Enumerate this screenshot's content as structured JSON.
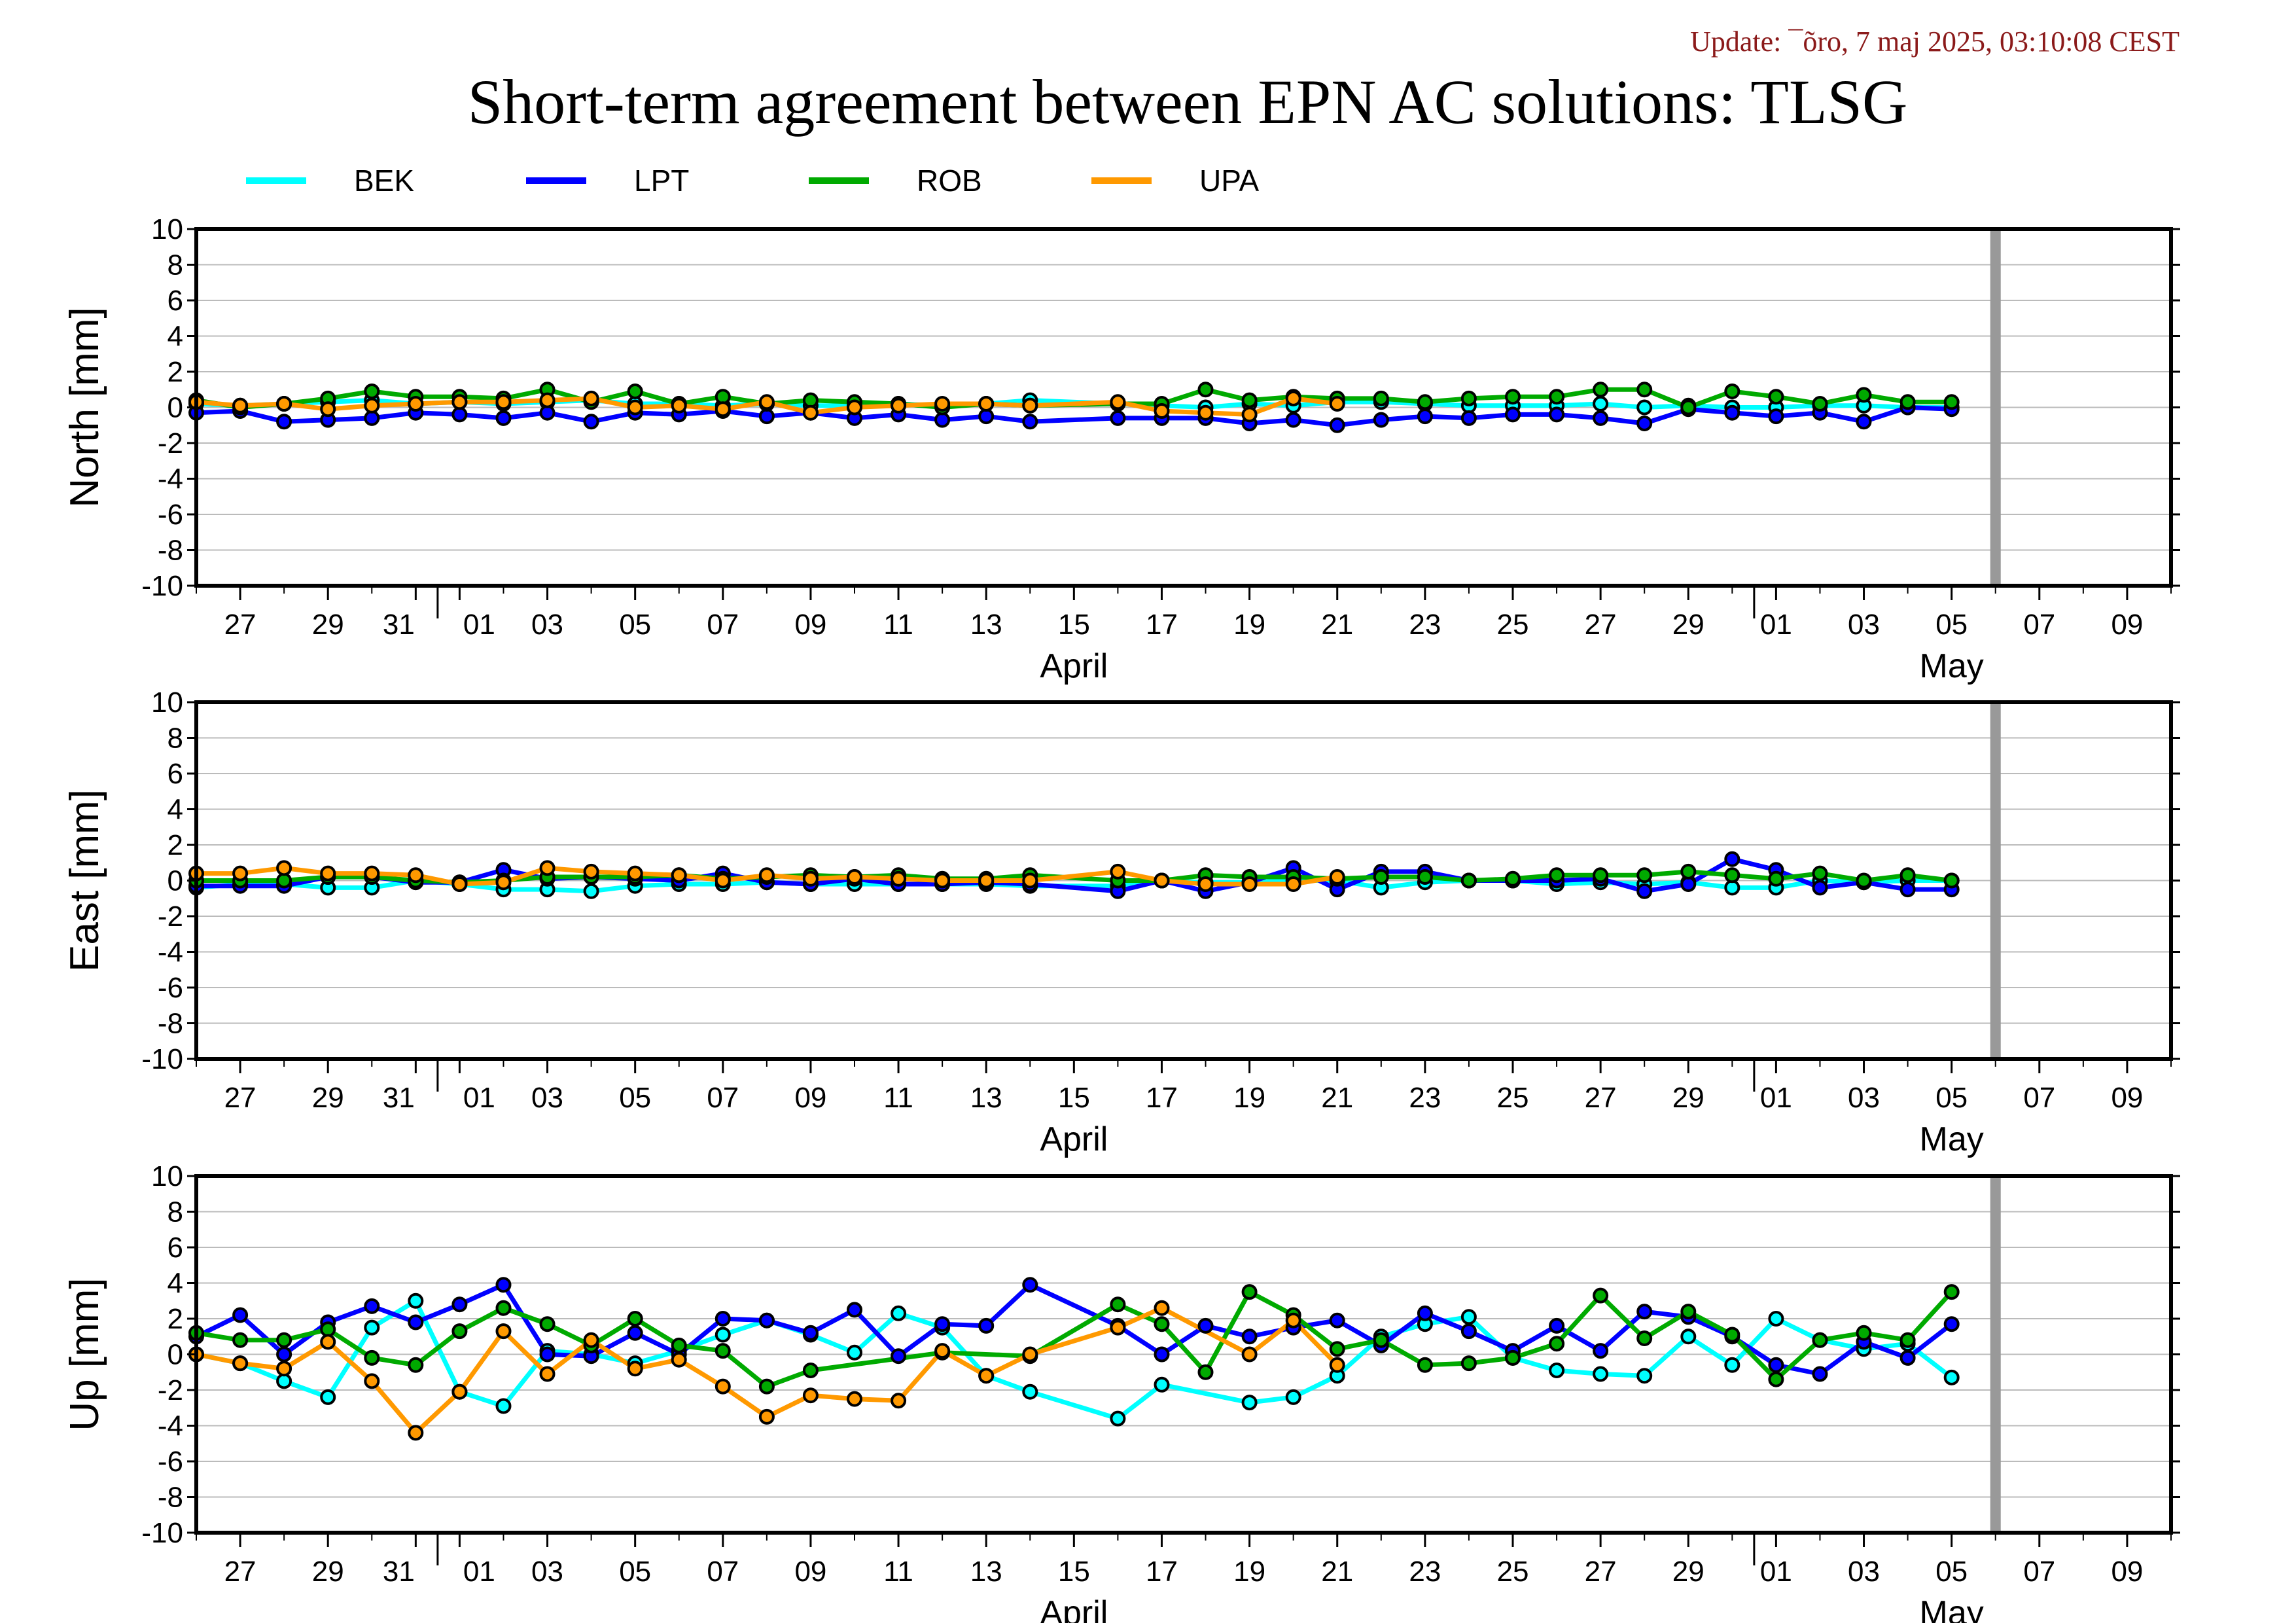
{
  "update_text": "Update: ¯õro, 7 maj 2025, 03:10:08 CEST",
  "title": "Short-term agreement between EPN AC solutions: TLSG",
  "colors": {
    "BEK": "#00ffff",
    "LPT": "#0000ff",
    "ROB": "#00aa00",
    "UPA": "#ff9900",
    "today_bar": "#999999",
    "grid": "#bbbbbb"
  },
  "chart_data": [
    {
      "type": "line",
      "ylabel": "North [mm]",
      "ylim": [
        -10,
        10
      ],
      "yticks": [
        10,
        8,
        6,
        4,
        2,
        0,
        -2,
        -4,
        -6,
        -8,
        -10
      ],
      "xlim": [
        "2025-03-26",
        "2025-05-10"
      ],
      "xtick_labels": [
        {
          "date": "2025-03-27",
          "label": "27"
        },
        {
          "date": "2025-03-29",
          "label": "29"
        },
        {
          "date": "2025-03-31",
          "label": "31"
        },
        {
          "date": "2025-04-01",
          "label": "01"
        },
        {
          "date": "2025-04-03",
          "label": "03"
        },
        {
          "date": "2025-04-05",
          "label": "05"
        },
        {
          "date": "2025-04-07",
          "label": "07"
        },
        {
          "date": "2025-04-09",
          "label": "09"
        },
        {
          "date": "2025-04-11",
          "label": "11"
        },
        {
          "date": "2025-04-13",
          "label": "13"
        },
        {
          "date": "2025-04-15",
          "label": "15"
        },
        {
          "date": "2025-04-17",
          "label": "17"
        },
        {
          "date": "2025-04-19",
          "label": "19"
        },
        {
          "date": "2025-04-21",
          "label": "21"
        },
        {
          "date": "2025-04-23",
          "label": "23"
        },
        {
          "date": "2025-04-25",
          "label": "25"
        },
        {
          "date": "2025-04-27",
          "label": "27"
        },
        {
          "date": "2025-04-29",
          "label": "29"
        },
        {
          "date": "2025-05-01",
          "label": "01"
        },
        {
          "date": "2025-05-03",
          "label": "03"
        },
        {
          "date": "2025-05-05",
          "label": "05"
        },
        {
          "date": "2025-05-07",
          "label": "07"
        },
        {
          "date": "2025-05-09",
          "label": "09"
        }
      ],
      "month_labels": [
        {
          "date": "2025-04-15",
          "label": "April"
        },
        {
          "date": "2025-05-05",
          "label": "May"
        }
      ],
      "today_marker": "2025-05-06",
      "x": [
        "2025-03-26",
        "2025-03-27",
        "2025-03-28",
        "2025-03-29",
        "2025-03-30",
        "2025-03-31",
        "2025-04-01",
        "2025-04-02",
        "2025-04-03",
        "2025-04-04",
        "2025-04-05",
        "2025-04-06",
        "2025-04-07",
        "2025-04-08",
        "2025-04-09",
        "2025-04-10",
        "2025-04-11",
        "2025-04-12",
        "2025-04-13",
        "2025-04-14",
        "2025-04-16",
        "2025-04-17",
        "2025-04-18",
        "2025-04-19",
        "2025-04-20",
        "2025-04-21",
        "2025-04-22",
        "2025-04-23",
        "2025-04-24",
        "2025-04-25",
        "2025-04-26",
        "2025-04-27",
        "2025-04-28",
        "2025-04-29",
        "2025-04-30",
        "2025-05-01",
        "2025-05-02",
        "2025-05-03",
        "2025-05-04",
        "2025-05-05"
      ],
      "series": [
        {
          "name": "BEK",
          "values": [
            0.2,
            0.1,
            0.2,
            0.3,
            0.4,
            0.2,
            0.3,
            0.2,
            0.3,
            0.4,
            0.2,
            0.2,
            0.1,
            0.2,
            0.1,
            0.1,
            0.2,
            0.1,
            0.2,
            0.4,
            0.2,
            0.1,
            0.0,
            0.2,
            0.1,
            0.3,
            0.3,
            0.2,
            0.1,
            0.1,
            0.1,
            0.2,
            0.0,
            0.1,
            0.0,
            0.0,
            0.1,
            0.1,
            0.0,
            0.0
          ]
        },
        {
          "name": "LPT",
          "values": [
            -0.3,
            -0.2,
            -0.8,
            -0.7,
            -0.6,
            -0.3,
            -0.4,
            -0.6,
            -0.3,
            -0.8,
            -0.3,
            -0.4,
            -0.2,
            -0.5,
            -0.3,
            -0.6,
            -0.4,
            -0.7,
            -0.5,
            -0.8,
            -0.6,
            -0.6,
            -0.6,
            -0.9,
            -0.7,
            -1.0,
            -0.7,
            -0.5,
            -0.6,
            -0.4,
            -0.4,
            -0.6,
            -0.9,
            -0.1,
            -0.3,
            -0.5,
            -0.3,
            -0.8,
            0.0,
            -0.1
          ]
        },
        {
          "name": "ROB",
          "values": [
            0.4,
            0.0,
            0.2,
            0.5,
            0.9,
            0.6,
            0.6,
            0.5,
            1.0,
            0.3,
            0.9,
            0.2,
            0.6,
            0.2,
            0.4,
            0.3,
            0.2,
            0.0,
            0.2,
            0.1,
            0.2,
            0.2,
            1.0,
            0.4,
            0.6,
            0.5,
            0.5,
            0.3,
            0.5,
            0.6,
            0.6,
            1.0,
            1.0,
            0.0,
            0.9,
            0.6,
            0.2,
            0.7,
            0.3,
            0.3
          ]
        },
        {
          "name": "UPA",
          "values": [
            0.3,
            0.1,
            0.2,
            -0.1,
            0.1,
            0.2,
            0.3,
            0.3,
            0.4,
            0.5,
            0.0,
            0.1,
            -0.1,
            0.3,
            -0.3,
            0.0,
            0.1,
            0.2,
            0.2,
            0.1,
            0.3,
            -0.2,
            -0.3,
            -0.4,
            0.5,
            0.2,
            null,
            null,
            null,
            null,
            null,
            null,
            null,
            null,
            null,
            null,
            null,
            null,
            null,
            null
          ]
        }
      ]
    },
    {
      "type": "line",
      "ylabel": "East [mm]",
      "ylim": [
        -10,
        10
      ],
      "yticks": [
        10,
        8,
        6,
        4,
        2,
        0,
        -2,
        -4,
        -6,
        -8,
        -10
      ],
      "xlim": [
        "2025-03-26",
        "2025-05-10"
      ],
      "xtick_labels": [
        {
          "date": "2025-03-27",
          "label": "27"
        },
        {
          "date": "2025-03-29",
          "label": "29"
        },
        {
          "date": "2025-03-31",
          "label": "31"
        },
        {
          "date": "2025-04-01",
          "label": "01"
        },
        {
          "date": "2025-04-03",
          "label": "03"
        },
        {
          "date": "2025-04-05",
          "label": "05"
        },
        {
          "date": "2025-04-07",
          "label": "07"
        },
        {
          "date": "2025-04-09",
          "label": "09"
        },
        {
          "date": "2025-04-11",
          "label": "11"
        },
        {
          "date": "2025-04-13",
          "label": "13"
        },
        {
          "date": "2025-04-15",
          "label": "15"
        },
        {
          "date": "2025-04-17",
          "label": "17"
        },
        {
          "date": "2025-04-19",
          "label": "19"
        },
        {
          "date": "2025-04-21",
          "label": "21"
        },
        {
          "date": "2025-04-23",
          "label": "23"
        },
        {
          "date": "2025-04-25",
          "label": "25"
        },
        {
          "date": "2025-04-27",
          "label": "27"
        },
        {
          "date": "2025-04-29",
          "label": "29"
        },
        {
          "date": "2025-05-01",
          "label": "01"
        },
        {
          "date": "2025-05-03",
          "label": "03"
        },
        {
          "date": "2025-05-05",
          "label": "05"
        },
        {
          "date": "2025-05-07",
          "label": "07"
        },
        {
          "date": "2025-05-09",
          "label": "09"
        }
      ],
      "month_labels": [
        {
          "date": "2025-04-15",
          "label": "April"
        },
        {
          "date": "2025-05-05",
          "label": "May"
        }
      ],
      "today_marker": "2025-05-06",
      "x": [
        "2025-03-26",
        "2025-03-27",
        "2025-03-28",
        "2025-03-29",
        "2025-03-30",
        "2025-03-31",
        "2025-04-01",
        "2025-04-02",
        "2025-04-03",
        "2025-04-04",
        "2025-04-05",
        "2025-04-06",
        "2025-04-07",
        "2025-04-08",
        "2025-04-09",
        "2025-04-10",
        "2025-04-11",
        "2025-04-12",
        "2025-04-13",
        "2025-04-14",
        "2025-04-16",
        "2025-04-17",
        "2025-04-18",
        "2025-04-19",
        "2025-04-20",
        "2025-04-21",
        "2025-04-22",
        "2025-04-23",
        "2025-04-24",
        "2025-04-25",
        "2025-04-26",
        "2025-04-27",
        "2025-04-28",
        "2025-04-29",
        "2025-04-30",
        "2025-05-01",
        "2025-05-02",
        "2025-05-03",
        "2025-05-04",
        "2025-05-05"
      ],
      "series": [
        {
          "name": "BEK",
          "values": [
            -0.4,
            -0.2,
            -0.2,
            -0.4,
            -0.4,
            0.0,
            -0.2,
            -0.5,
            -0.5,
            -0.6,
            -0.3,
            -0.2,
            -0.2,
            -0.1,
            -0.2,
            -0.2,
            -0.2,
            -0.2,
            -0.2,
            -0.3,
            -0.3,
            0.0,
            -0.1,
            -0.1,
            0.0,
            0.0,
            -0.4,
            -0.1,
            0.0,
            0.0,
            -0.2,
            -0.1,
            -0.2,
            -0.1,
            -0.4,
            -0.4,
            0.0,
            -0.1,
            0.0,
            0.0
          ]
        },
        {
          "name": "LPT",
          "values": [
            -0.3,
            -0.3,
            -0.3,
            0.2,
            0.2,
            -0.1,
            -0.1,
            0.6,
            0.1,
            0.2,
            0.1,
            0.0,
            0.4,
            -0.1,
            -0.2,
            0.1,
            -0.2,
            -0.2,
            -0.1,
            -0.2,
            -0.6,
            0.0,
            -0.6,
            -0.1,
            0.7,
            -0.5,
            0.5,
            0.5,
            0.0,
            0.0,
            0.0,
            0.1,
            -0.6,
            -0.2,
            1.2,
            0.6,
            -0.4,
            -0.1,
            -0.5,
            -0.5
          ]
        },
        {
          "name": "ROB",
          "values": [
            0.0,
            0.0,
            0.0,
            0.2,
            0.2,
            0.0,
            -0.1,
            0.0,
            0.2,
            0.2,
            0.2,
            0.3,
            0.1,
            0.2,
            0.3,
            0.2,
            0.3,
            0.1,
            0.1,
            0.3,
            0.0,
            0.0,
            0.3,
            0.2,
            0.2,
            0.1,
            0.2,
            0.2,
            0.0,
            0.1,
            0.3,
            0.3,
            0.3,
            0.5,
            0.3,
            0.1,
            0.4,
            0.0,
            0.3,
            0.0
          ]
        },
        {
          "name": "UPA",
          "values": [
            0.4,
            0.4,
            0.7,
            0.4,
            0.4,
            0.3,
            -0.2,
            -0.1,
            0.7,
            0.5,
            0.4,
            0.3,
            0.0,
            0.3,
            0.1,
            0.2,
            0.1,
            0.0,
            0.0,
            0.0,
            0.5,
            0.0,
            -0.2,
            -0.2,
            -0.2,
            0.2,
            null,
            null,
            null,
            null,
            null,
            null,
            null,
            null,
            null,
            null,
            null,
            null,
            null,
            null
          ]
        }
      ]
    },
    {
      "type": "line",
      "ylabel": "Up [mm]",
      "ylim": [
        -10,
        10
      ],
      "yticks": [
        10,
        8,
        6,
        4,
        2,
        0,
        -2,
        -4,
        -6,
        -8,
        -10
      ],
      "xlim": [
        "2025-03-26",
        "2025-05-10"
      ],
      "xtick_labels": [
        {
          "date": "2025-03-27",
          "label": "27"
        },
        {
          "date": "2025-03-29",
          "label": "29"
        },
        {
          "date": "2025-03-31",
          "label": "31"
        },
        {
          "date": "2025-04-01",
          "label": "01"
        },
        {
          "date": "2025-04-03",
          "label": "03"
        },
        {
          "date": "2025-04-05",
          "label": "05"
        },
        {
          "date": "2025-04-07",
          "label": "07"
        },
        {
          "date": "2025-04-09",
          "label": "09"
        },
        {
          "date": "2025-04-11",
          "label": "11"
        },
        {
          "date": "2025-04-13",
          "label": "13"
        },
        {
          "date": "2025-04-15",
          "label": "15"
        },
        {
          "date": "2025-04-17",
          "label": "17"
        },
        {
          "date": "2025-04-19",
          "label": "19"
        },
        {
          "date": "2025-04-21",
          "label": "21"
        },
        {
          "date": "2025-04-23",
          "label": "23"
        },
        {
          "date": "2025-04-25",
          "label": "25"
        },
        {
          "date": "2025-04-27",
          "label": "27"
        },
        {
          "date": "2025-04-29",
          "label": "29"
        },
        {
          "date": "2025-05-01",
          "label": "01"
        },
        {
          "date": "2025-05-03",
          "label": "03"
        },
        {
          "date": "2025-05-05",
          "label": "05"
        },
        {
          "date": "2025-05-07",
          "label": "07"
        },
        {
          "date": "2025-05-09",
          "label": "09"
        }
      ],
      "month_labels": [
        {
          "date": "2025-04-15",
          "label": "April"
        },
        {
          "date": "2025-05-05",
          "label": "May"
        }
      ],
      "today_marker": "2025-05-06",
      "x": [
        "2025-03-26",
        "2025-03-27",
        "2025-03-28",
        "2025-03-29",
        "2025-03-30",
        "2025-03-31",
        "2025-04-01",
        "2025-04-02",
        "2025-04-03",
        "2025-04-04",
        "2025-04-05",
        "2025-04-06",
        "2025-04-07",
        "2025-04-08",
        "2025-04-09",
        "2025-04-10",
        "2025-04-11",
        "2025-04-12",
        "2025-04-13",
        "2025-04-14",
        "2025-04-16",
        "2025-04-17",
        "2025-04-18",
        "2025-04-19",
        "2025-04-20",
        "2025-04-21",
        "2025-04-22",
        "2025-04-23",
        "2025-04-24",
        "2025-04-25",
        "2025-04-26",
        "2025-04-27",
        "2025-04-28",
        "2025-04-29",
        "2025-04-30",
        "2025-05-01",
        "2025-05-02",
        "2025-05-03",
        "2025-05-04",
        "2025-05-05"
      ],
      "series": [
        {
          "name": "BEK",
          "values": [
            0.0,
            -0.5,
            -1.5,
            -2.4,
            1.5,
            3.0,
            -2.1,
            -2.9,
            0.2,
            0.0,
            -0.5,
            0.2,
            1.1,
            1.9,
            1.1,
            0.1,
            2.3,
            1.5,
            -1.2,
            -2.1,
            -3.6,
            -1.7,
            null,
            -2.7,
            -2.4,
            -1.2,
            1.0,
            1.7,
            2.1,
            -0.2,
            -0.9,
            -1.1,
            -1.2,
            1.0,
            -0.6,
            2.0,
            0.8,
            0.3,
            0.6,
            -1.3
          ]
        },
        {
          "name": "LPT",
          "values": [
            1.0,
            2.2,
            0.0,
            1.8,
            2.7,
            1.8,
            2.8,
            3.9,
            0.0,
            -0.1,
            1.2,
            0.0,
            2.0,
            1.9,
            1.2,
            2.5,
            -0.1,
            1.7,
            1.6,
            3.9,
            1.6,
            0.0,
            1.6,
            1.0,
            1.5,
            1.9,
            0.5,
            2.3,
            1.3,
            0.2,
            1.6,
            0.2,
            2.4,
            2.1,
            1.0,
            -0.6,
            -1.1,
            0.7,
            -0.2,
            1.7
          ]
        },
        {
          "name": "ROB",
          "values": [
            1.2,
            0.8,
            0.8,
            1.4,
            -0.2,
            -0.6,
            1.3,
            2.6,
            1.7,
            0.5,
            2.0,
            0.5,
            0.2,
            -1.8,
            -0.9,
            null,
            null,
            0.1,
            null,
            -0.1,
            2.8,
            1.7,
            -1.0,
            3.5,
            2.2,
            0.3,
            0.8,
            -0.6,
            -0.5,
            -0.2,
            0.6,
            3.3,
            0.9,
            2.4,
            1.1,
            -1.4,
            0.8,
            1.2,
            0.8,
            3.5
          ]
        },
        {
          "name": "UPA",
          "values": [
            0.0,
            -0.5,
            -0.8,
            0.7,
            -1.5,
            -4.4,
            -2.1,
            1.3,
            -1.1,
            0.8,
            -0.8,
            -0.3,
            -1.8,
            -3.5,
            -2.3,
            -2.5,
            -2.6,
            0.2,
            -1.2,
            0.0,
            1.5,
            2.6,
            null,
            0.0,
            1.9,
            -0.6,
            null,
            null,
            null,
            null,
            null,
            null,
            null,
            null,
            null,
            null,
            null,
            null,
            null,
            null
          ]
        }
      ]
    }
  ]
}
